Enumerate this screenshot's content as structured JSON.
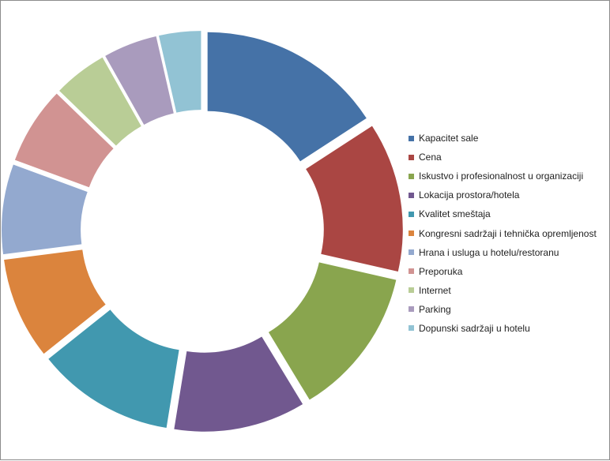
{
  "chart_data": {
    "type": "pie",
    "variant": "exploded-donut",
    "title": "",
    "legend_position": "right",
    "categories": [
      "Kapacitet sale",
      "Cena",
      "Iskustvo i profesionalnost u organizaciji",
      "Lokacija prostora/hotela",
      "Kvalitet smeštaja",
      "Kongresni sadržaji i tehnička opremljenost",
      "Hrana i usluga u hotelu/restoranu",
      "Preporuka",
      "Internet",
      "Parking",
      "Dopunski sadržaji u hotelu"
    ],
    "values": [
      15.5,
      12.5,
      12.5,
      11.0,
      11.5,
      8.5,
      7.5,
      6.5,
      4.5,
      4.5,
      3.5
    ],
    "colors": [
      "#4572a7",
      "#aa4643",
      "#89a54e",
      "#71588f",
      "#4198af",
      "#db843d",
      "#93a9cf",
      "#d19392",
      "#b9cd96",
      "#a99bbd",
      "#92c3d4"
    ]
  }
}
